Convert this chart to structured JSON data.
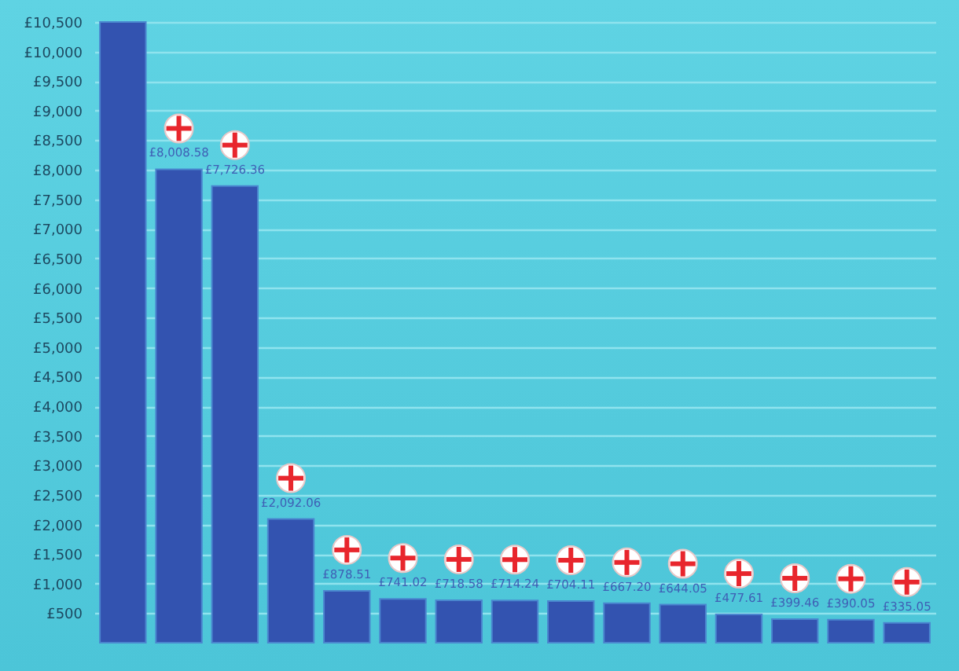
{
  "chart_data": {
    "type": "bar",
    "categories": [
      null,
      null,
      null,
      null,
      null,
      null,
      null,
      null,
      null,
      null,
      null,
      null,
      null,
      null,
      null
    ],
    "values": [
      10500,
      8008.58,
      7726.36,
      2092.06,
      878.51,
      741.02,
      718.58,
      714.24,
      704.11,
      667.2,
      644.05,
      477.61,
      399.46,
      390.05,
      335.05
    ],
    "value_labels": [
      null,
      "£8,008.58",
      "£7,726.36",
      "£2,092.06",
      "£878.51",
      "£741.02",
      "£718.58",
      "£714.24",
      "£704.11",
      "£667.20",
      "£644.05",
      "£477.61",
      "£399.46",
      "£390.05",
      "£335.05"
    ],
    "color": "#3353b0",
    "ylim": [
      0,
      10500
    ],
    "yticks": [
      {
        "value": 500,
        "label": "£500"
      },
      {
        "value": 1000,
        "label": "£1,000"
      },
      {
        "value": 1500,
        "label": "£1,500"
      },
      {
        "value": 2000,
        "label": "£2,000"
      },
      {
        "value": 2500,
        "label": "£2,500"
      },
      {
        "value": 3000,
        "label": "£3,000"
      },
      {
        "value": 3500,
        "label": "£3,500"
      },
      {
        "value": 4000,
        "label": "£4,000"
      },
      {
        "value": 4500,
        "label": "£4,500"
      },
      {
        "value": 5000,
        "label": "£5,000"
      },
      {
        "value": 5500,
        "label": "£5,500"
      },
      {
        "value": 6000,
        "label": "£6,000"
      },
      {
        "value": 6500,
        "label": "£6,500"
      },
      {
        "value": 7000,
        "label": "£7,000"
      },
      {
        "value": 7500,
        "label": "£7,500"
      },
      {
        "value": 8000,
        "label": "£8,000"
      },
      {
        "value": 8500,
        "label": "£8,500"
      },
      {
        "value": 9000,
        "label": "£9,000"
      },
      {
        "value": 9500,
        "label": "£9,500"
      },
      {
        "value": 10000,
        "label": "£10,000"
      },
      {
        "value": 10500,
        "label": "£10,500"
      }
    ],
    "grid": "y"
  }
}
